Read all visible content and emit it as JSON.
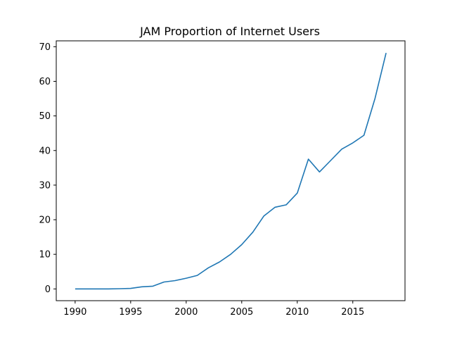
{
  "chart_data": {
    "type": "line",
    "title": "JAM Proportion of Internet Users",
    "xlabel": "",
    "ylabel": "",
    "xlim": [
      1988.3,
      2019.7
    ],
    "ylim": [
      -3.4,
      71.7
    ],
    "xticks": [
      1990,
      1995,
      2000,
      2005,
      2010,
      2015
    ],
    "yticks": [
      0,
      10,
      20,
      30,
      40,
      50,
      60,
      70
    ],
    "grid": false,
    "legend": "none",
    "series": [
      {
        "color": "#1f77b4",
        "x": [
          1990,
          1991,
          1992,
          1993,
          1994,
          1995,
          1996,
          1997,
          1998,
          1999,
          2000,
          2001,
          2002,
          2003,
          2004,
          2005,
          2006,
          2007,
          2008,
          2009,
          2010,
          2011,
          2012,
          2013,
          2014,
          2015,
          2016,
          2017,
          2018
        ],
        "y": [
          0,
          0,
          0,
          0,
          0.05,
          0.15,
          0.6,
          0.8,
          2.0,
          2.4,
          3.1,
          3.9,
          6.1,
          7.8,
          10.0,
          12.8,
          16.4,
          21.1,
          23.6,
          24.3,
          27.7,
          37.5,
          33.8,
          37.1,
          40.4,
          42.2,
          44.4,
          55.1,
          68.2
        ]
      }
    ]
  }
}
